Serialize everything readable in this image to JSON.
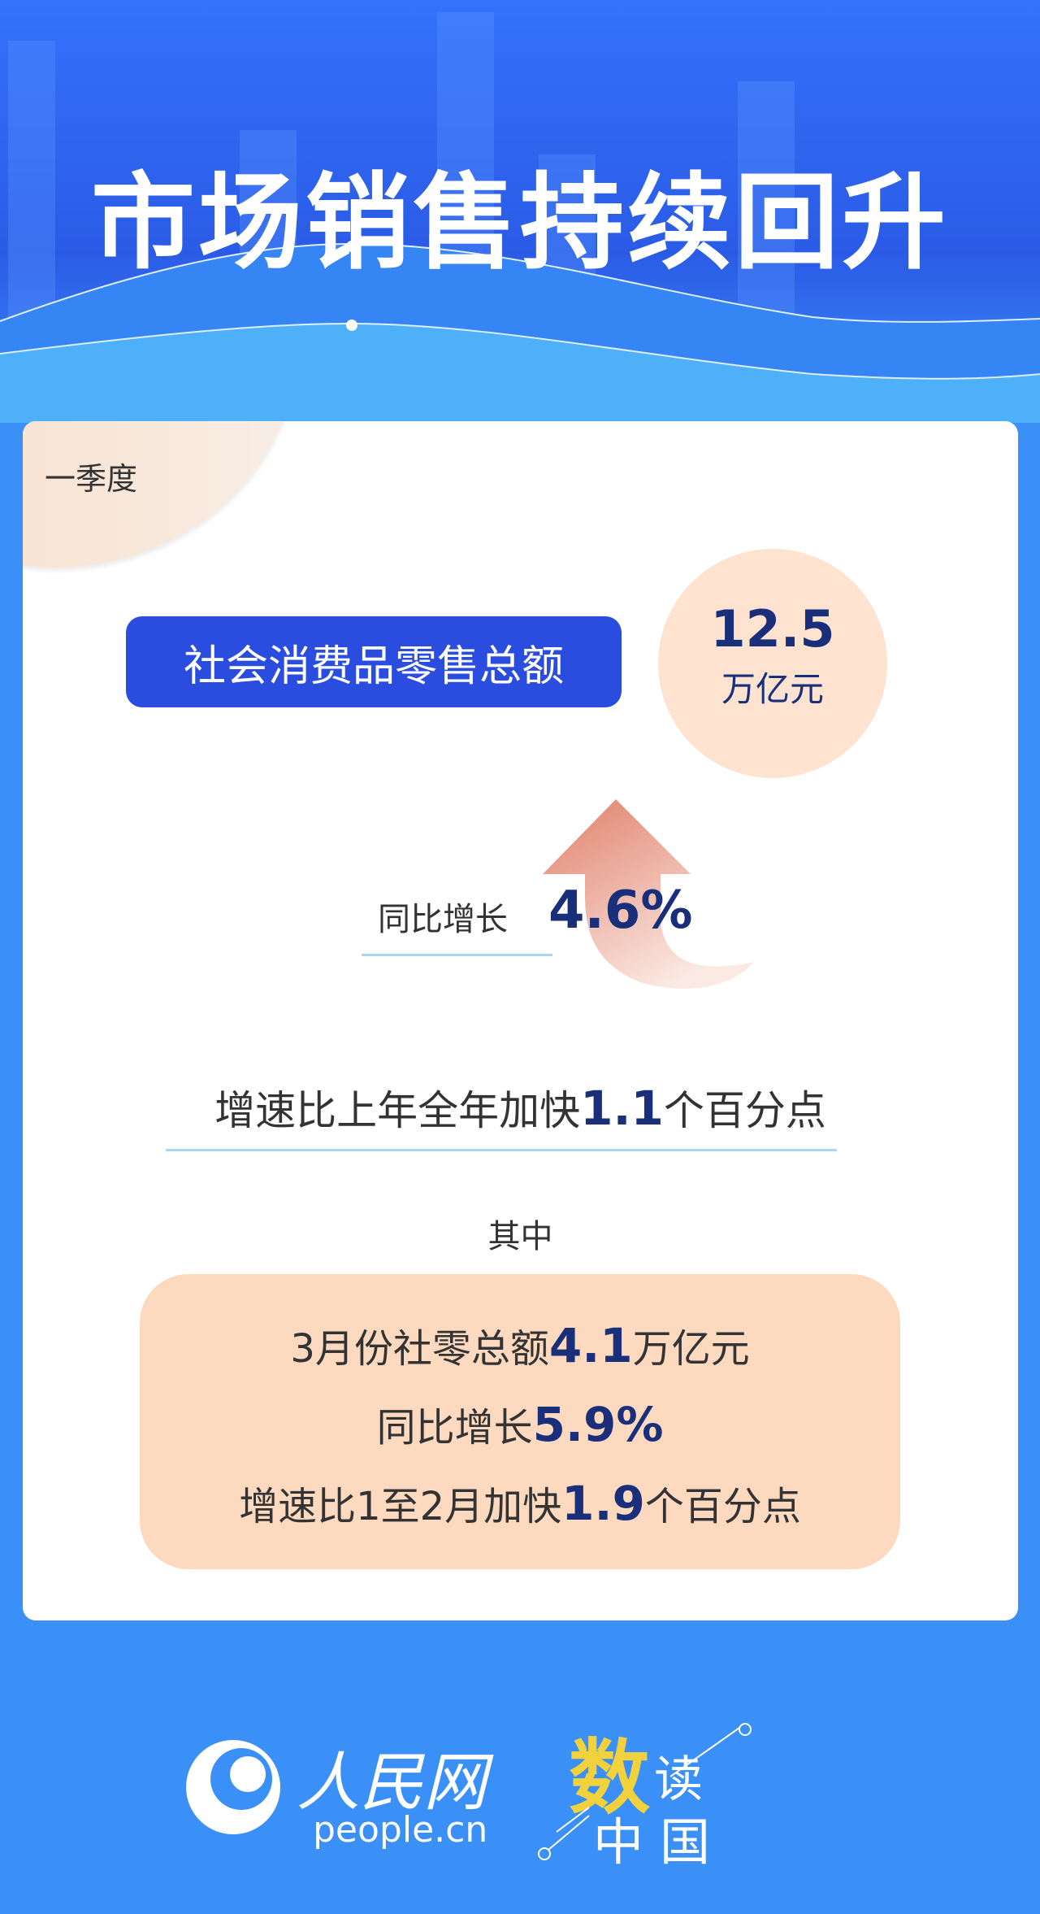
{
  "header": {
    "title": "市场销售持续回升"
  },
  "card": {
    "period": "一季度",
    "metric_label": "社会消费品零售总额",
    "metric_value": "12.5",
    "metric_unit": "万亿元",
    "yoy_label": "同比增长",
    "yoy_value": "4.6%",
    "accel_prefix": "增速比上年全年加快",
    "accel_value": "1.1",
    "accel_suffix": "个百分点",
    "among_label": "其中",
    "march": [
      {
        "prefix": "3月份社零总额",
        "value": "4.1",
        "suffix": "万亿元"
      },
      {
        "prefix": "同比增长",
        "value": "5.9%",
        "suffix": ""
      },
      {
        "prefix": "增速比1至2月加快",
        "value": "1.9",
        "suffix": "个百分点"
      }
    ]
  },
  "footer": {
    "logo1": "人民网",
    "logo1_url_text": "people.cn",
    "logo2": "数读中国"
  },
  "colors": {
    "accent": "#2a4de0",
    "navy": "#1a2f7a",
    "peach": "#fdd9c0",
    "yellow": "#f2d23c"
  }
}
